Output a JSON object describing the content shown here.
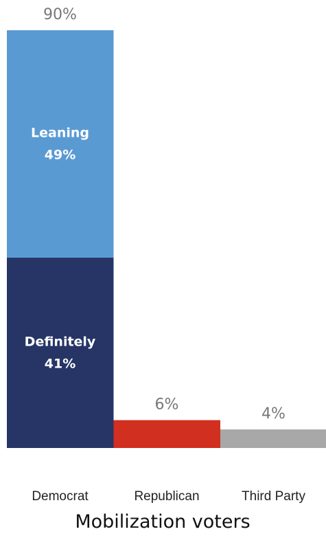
{
  "chart_data": {
    "type": "bar",
    "stacked": true,
    "categories": [
      "Democrat",
      "Republican",
      "Third Party"
    ],
    "series": [
      {
        "name": "Definitely",
        "values": [
          41,
          6,
          4
        ],
        "colors": [
          "#263566",
          "#d12f20",
          "#a8a8a8"
        ]
      },
      {
        "name": "Leaning",
        "values": [
          49,
          0,
          0
        ],
        "colors": [
          "#5a9ad3",
          "#d12f20",
          "#a8a8a8"
        ]
      }
    ],
    "segment_labels": [
      {
        "category": "Democrat",
        "series": "Leaning",
        "name": "Leaning",
        "value": "49%"
      },
      {
        "category": "Democrat",
        "series": "Definitely",
        "name": "Definitely",
        "value": "41%"
      }
    ],
    "totals": [
      "90%",
      "6%",
      "4%"
    ],
    "xlabel": "Mobilization voters",
    "ylabel": "",
    "title": "",
    "ylim": [
      0,
      90
    ],
    "grid": false,
    "legend": "none"
  }
}
